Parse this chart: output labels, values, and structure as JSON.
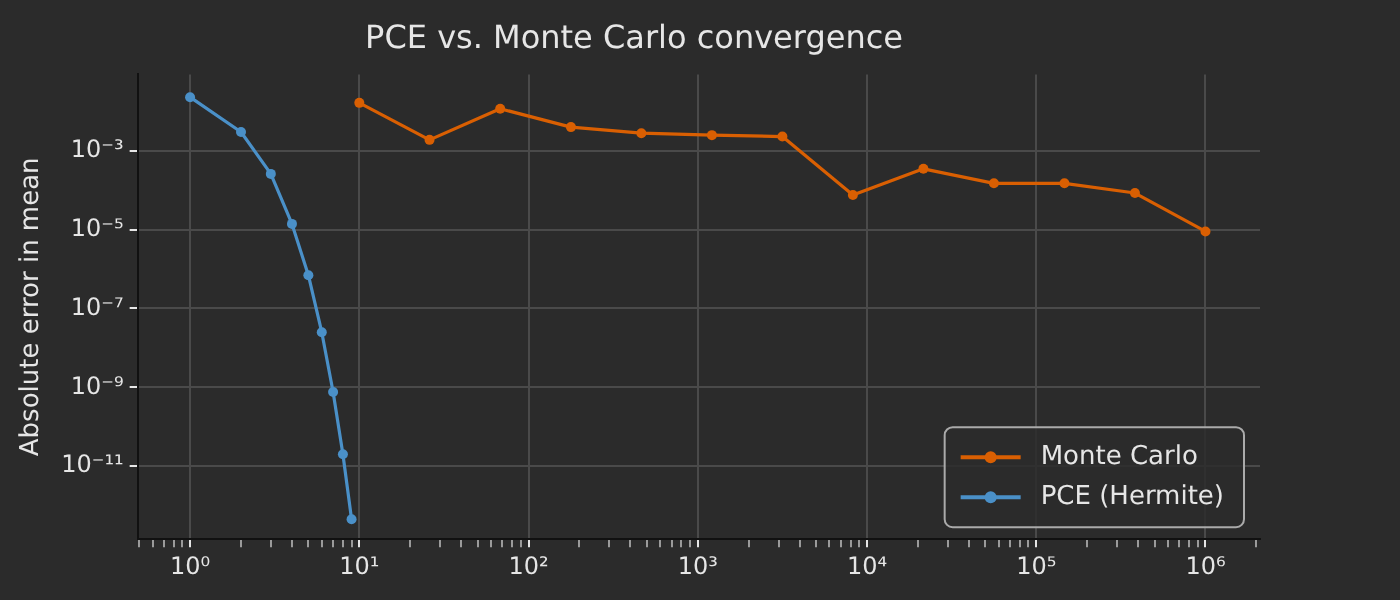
{
  "chart_data": {
    "type": "line",
    "title": "PCE vs. Monte Carlo convergence",
    "ylabel": "Absolute error in mean",
    "series": [
      {
        "name": "Monte Carlo",
        "color": "#d95f02",
        "x": [
          10,
          26,
          68,
          178,
          464,
          1212,
          3162,
          8254,
          21544,
          56234,
          146780,
          383119,
          1000000
        ],
        "values": [
          0.0165,
          0.0019,
          0.0117,
          0.004,
          0.0028,
          0.0025,
          0.0023,
          7.6e-05,
          0.00035,
          0.00015,
          0.00015,
          8.5e-05,
          9e-06
        ]
      },
      {
        "name": "PCE (Hermite)",
        "color": "#4a90c8",
        "x": [
          1,
          2,
          3,
          4,
          5,
          6,
          7,
          8,
          9
        ],
        "values": [
          0.023,
          0.003,
          0.00026,
          1.4e-05,
          7e-07,
          2.5e-08,
          7.6e-10,
          2e-11,
          4.5e-13
        ]
      }
    ],
    "log": "xy",
    "marker": "circle",
    "line_style": "solid",
    "grid": true,
    "legend": "bottom right",
    "xlim": [
      0.49,
      2100000
    ],
    "ylim": [
      1.4e-13,
      0.087
    ],
    "xticks": [
      {
        "value": 0.5,
        "label": null
      },
      {
        "value": 0.6,
        "label": null
      },
      {
        "value": 0.7,
        "label": null
      },
      {
        "value": 0.8,
        "label": null
      },
      {
        "value": 0.9,
        "label": null
      },
      {
        "value": 1,
        "label": "10⁰"
      },
      {
        "value": 2,
        "label": null
      },
      {
        "value": 3,
        "label": null
      },
      {
        "value": 4,
        "label": null
      },
      {
        "value": 5,
        "label": null
      },
      {
        "value": 6,
        "label": null
      },
      {
        "value": 7,
        "label": null
      },
      {
        "value": 8,
        "label": null
      },
      {
        "value": 9,
        "label": null
      },
      {
        "value": 10,
        "label": "10¹"
      },
      {
        "value": 20,
        "label": null
      },
      {
        "value": 30,
        "label": null
      },
      {
        "value": 40,
        "label": null
      },
      {
        "value": 50,
        "label": null
      },
      {
        "value": 60,
        "label": null
      },
      {
        "value": 70,
        "label": null
      },
      {
        "value": 80,
        "label": null
      },
      {
        "value": 90,
        "label": null
      },
      {
        "value": 100,
        "label": "10²"
      },
      {
        "value": 200,
        "label": null
      },
      {
        "value": 300,
        "label": null
      },
      {
        "value": 400,
        "label": null
      },
      {
        "value": 500,
        "label": null
      },
      {
        "value": 600,
        "label": null
      },
      {
        "value": 700,
        "label": null
      },
      {
        "value": 800,
        "label": null
      },
      {
        "value": 900,
        "label": null
      },
      {
        "value": 1000,
        "label": "10³"
      },
      {
        "value": 2000,
        "label": null
      },
      {
        "value": 3000,
        "label": null
      },
      {
        "value": 4000,
        "label": null
      },
      {
        "value": 5000,
        "label": null
      },
      {
        "value": 6000,
        "label": null
      },
      {
        "value": 7000,
        "label": null
      },
      {
        "value": 8000,
        "label": null
      },
      {
        "value": 9000,
        "label": null
      },
      {
        "value": 10000,
        "label": "10⁴"
      },
      {
        "value": 20000,
        "label": null
      },
      {
        "value": 30000,
        "label": null
      },
      {
        "value": 40000,
        "label": null
      },
      {
        "value": 50000,
        "label": null
      },
      {
        "value": 60000,
        "label": null
      },
      {
        "value": 70000,
        "label": null
      },
      {
        "value": 80000,
        "label": null
      },
      {
        "value": 90000,
        "label": null
      },
      {
        "value": 100000,
        "label": "10⁵"
      },
      {
        "value": 200000,
        "label": null
      },
      {
        "value": 300000,
        "label": null
      },
      {
        "value": 400000,
        "label": null
      },
      {
        "value": 500000,
        "label": null
      },
      {
        "value": 600000,
        "label": null
      },
      {
        "value": 700000,
        "label": null
      },
      {
        "value": 800000,
        "label": null
      },
      {
        "value": 900000,
        "label": null
      },
      {
        "value": 1000000,
        "label": "10⁶"
      },
      {
        "value": 2000000,
        "label": null
      }
    ],
    "yticks": [
      {
        "value": 1e-11,
        "label": "10⁻¹¹"
      },
      {
        "value": 1e-09,
        "label": "10⁻⁹"
      },
      {
        "value": 1e-07,
        "label": "10⁻⁷"
      },
      {
        "value": 1e-05,
        "label": "10⁻⁵"
      },
      {
        "value": 0.001,
        "label": "10⁻³"
      }
    ]
  }
}
